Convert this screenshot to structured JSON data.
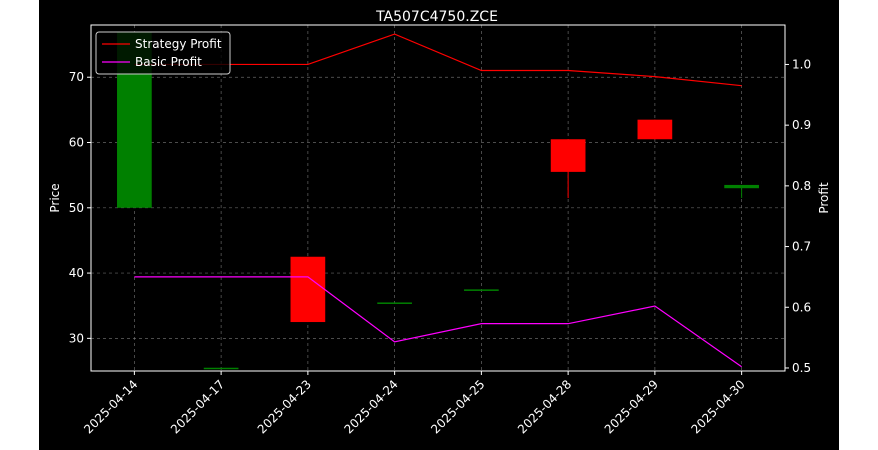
{
  "chart_data": {
    "type": "candlestick",
    "title": "TA507C4750.ZCE",
    "xlabel": "",
    "ylabel_left": "Price",
    "ylabel_right": "Profit",
    "categories": [
      "2025-04-14",
      "2025-04-17",
      "2025-04-23",
      "2025-04-24",
      "2025-04-25",
      "2025-04-28",
      "2025-04-29",
      "2025-04-30"
    ],
    "candles": [
      {
        "open": 50.0,
        "close": 77.0,
        "high": 77.0,
        "low": 50.0
      },
      {
        "open": 25.5,
        "close": 25.5,
        "high": 25.5,
        "low": 25.5
      },
      {
        "open": 42.5,
        "close": 32.5,
        "high": 42.5,
        "low": 32.5
      },
      {
        "open": 35.5,
        "close": 35.5,
        "high": 35.5,
        "low": 35.5
      },
      {
        "open": 37.5,
        "close": 37.5,
        "high": 37.5,
        "low": 37.5
      },
      {
        "open": 60.5,
        "close": 55.5,
        "high": 60.5,
        "low": 51.5
      },
      {
        "open": 63.5,
        "close": 60.5,
        "high": 63.5,
        "low": 60.5
      },
      {
        "open": 53.0,
        "close": 53.5,
        "high": 53.5,
        "low": 51.5
      }
    ],
    "series": [
      {
        "name": "Strategy Profit",
        "color": "#ff0000",
        "values": [
          1.0,
          1.0,
          1.0,
          1.05,
          0.99,
          0.99,
          0.98,
          0.965
        ]
      },
      {
        "name": "Basic Profit",
        "color": "#ff00ff",
        "values": [
          0.65,
          0.65,
          0.65,
          0.543,
          0.573,
          0.573,
          0.602,
          0.502
        ]
      }
    ],
    "ylim_left": [
      25.0,
      78.0
    ],
    "yticks_left": [
      30,
      40,
      50,
      60,
      70
    ],
    "ylim_right": [
      0.495,
      1.065
    ],
    "yticks_right": [
      "0.5",
      "0.6",
      "0.7",
      "0.8",
      "0.9",
      "1.0"
    ],
    "grid": true,
    "legend": "top-left",
    "colors": {
      "background": "#000000",
      "up": "#008000",
      "down": "#ff0000",
      "axis": "#ffffff",
      "grid": "#808080"
    }
  }
}
